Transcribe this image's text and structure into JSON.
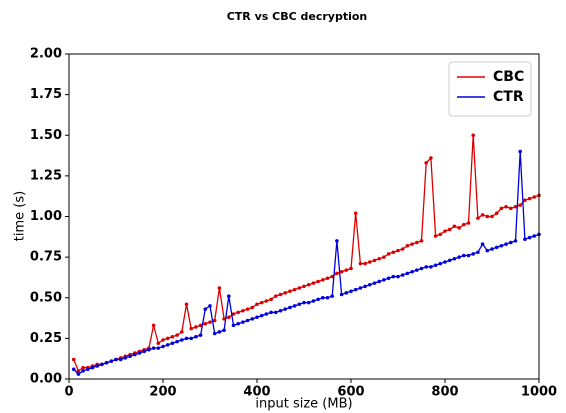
{
  "chart_data": {
    "type": "line",
    "title": "CTR vs CBC decryption",
    "xlabel": "input size (MB)",
    "ylabel": "time (s)",
    "x": [
      10,
      20,
      30,
      40,
      50,
      60,
      70,
      80,
      90,
      100,
      110,
      120,
      130,
      140,
      150,
      160,
      170,
      180,
      190,
      200,
      210,
      220,
      230,
      240,
      250,
      260,
      270,
      280,
      290,
      300,
      310,
      320,
      330,
      340,
      350,
      360,
      370,
      380,
      390,
      400,
      410,
      420,
      430,
      440,
      450,
      460,
      470,
      480,
      490,
      500,
      510,
      520,
      530,
      540,
      550,
      560,
      570,
      580,
      590,
      600,
      610,
      620,
      630,
      640,
      650,
      660,
      670,
      680,
      690,
      700,
      710,
      720,
      730,
      740,
      750,
      760,
      770,
      780,
      790,
      800,
      810,
      820,
      830,
      840,
      850,
      860,
      870,
      880,
      890,
      900,
      910,
      920,
      930,
      940,
      950,
      960,
      970,
      980,
      990,
      1000
    ],
    "series": [
      {
        "name": "CBC",
        "color": "#dd0000",
        "values": [
          0.12,
          0.05,
          0.07,
          0.07,
          0.08,
          0.09,
          0.09,
          0.1,
          0.11,
          0.12,
          0.13,
          0.14,
          0.15,
          0.16,
          0.17,
          0.18,
          0.19,
          0.33,
          0.22,
          0.24,
          0.25,
          0.26,
          0.27,
          0.29,
          0.46,
          0.31,
          0.32,
          0.33,
          0.34,
          0.35,
          0.36,
          0.56,
          0.37,
          0.38,
          0.4,
          0.41,
          0.42,
          0.43,
          0.44,
          0.46,
          0.47,
          0.48,
          0.49,
          0.51,
          0.52,
          0.53,
          0.54,
          0.55,
          0.56,
          0.57,
          0.58,
          0.59,
          0.6,
          0.61,
          0.62,
          0.63,
          0.65,
          0.66,
          0.67,
          0.68,
          1.02,
          0.71,
          0.71,
          0.72,
          0.73,
          0.74,
          0.75,
          0.77,
          0.78,
          0.79,
          0.8,
          0.82,
          0.83,
          0.84,
          0.85,
          1.33,
          1.36,
          0.88,
          0.89,
          0.91,
          0.92,
          0.94,
          0.93,
          0.95,
          0.96,
          1.5,
          0.99,
          1.01,
          1.0,
          1.0,
          1.02,
          1.05,
          1.06,
          1.05,
          1.06,
          1.07,
          1.1,
          1.11,
          1.12,
          1.13
        ]
      },
      {
        "name": "CTR",
        "color": "#0000dd",
        "values": [
          0.06,
          0.03,
          0.05,
          0.06,
          0.07,
          0.08,
          0.09,
          0.1,
          0.11,
          0.12,
          0.12,
          0.13,
          0.14,
          0.15,
          0.16,
          0.17,
          0.18,
          0.19,
          0.19,
          0.2,
          0.21,
          0.22,
          0.23,
          0.24,
          0.25,
          0.25,
          0.26,
          0.27,
          0.43,
          0.45,
          0.28,
          0.29,
          0.3,
          0.51,
          0.33,
          0.34,
          0.35,
          0.36,
          0.37,
          0.38,
          0.39,
          0.4,
          0.41,
          0.41,
          0.42,
          0.43,
          0.44,
          0.45,
          0.46,
          0.47,
          0.47,
          0.48,
          0.49,
          0.5,
          0.5,
          0.51,
          0.85,
          0.52,
          0.53,
          0.54,
          0.55,
          0.56,
          0.57,
          0.58,
          0.59,
          0.6,
          0.61,
          0.62,
          0.63,
          0.63,
          0.64,
          0.65,
          0.66,
          0.67,
          0.68,
          0.69,
          0.69,
          0.7,
          0.71,
          0.72,
          0.73,
          0.74,
          0.75,
          0.76,
          0.76,
          0.77,
          0.78,
          0.83,
          0.79,
          0.8,
          0.81,
          0.82,
          0.83,
          0.84,
          0.85,
          1.4,
          0.86,
          0.87,
          0.88,
          0.89
        ]
      }
    ],
    "xlim": [
      0,
      1000
    ],
    "xticks": [
      0,
      200,
      400,
      600,
      800,
      1000
    ],
    "ylim": [
      0,
      2
    ],
    "yticks": [
      {
        "value": 0,
        "label": "0.00"
      },
      {
        "value": 0.25,
        "label": "0.25"
      },
      {
        "value": 0.5,
        "label": "0.50"
      },
      {
        "value": 0.75,
        "label": "0.75"
      },
      {
        "value": 1,
        "label": "1.00"
      },
      {
        "value": 1.25,
        "label": "1.25"
      },
      {
        "value": 1.5,
        "label": "1.50"
      },
      {
        "value": 1.75,
        "label": "1.75"
      },
      {
        "value": 2,
        "label": "2.00"
      }
    ],
    "grid": false,
    "legend": "upper right"
  }
}
